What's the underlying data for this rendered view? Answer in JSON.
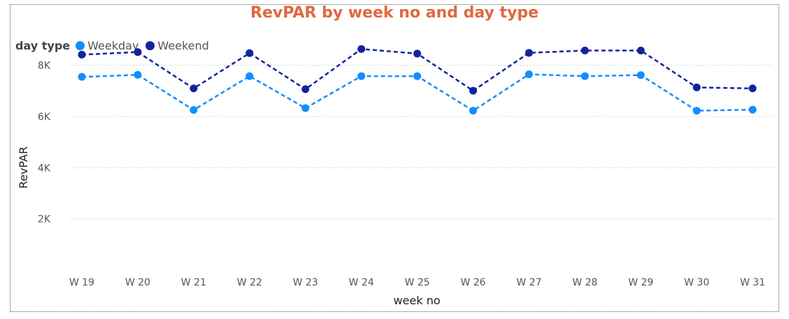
{
  "chart_data": {
    "type": "line",
    "title": "RevPAR by week no and day type",
    "xlabel": "week no",
    "ylabel": "RevPAR",
    "legend_title": "day type",
    "legend_position": "top-left",
    "grid": "horizontal dotted",
    "categories": [
      "W 19",
      "W 20",
      "W 21",
      "W 22",
      "W 23",
      "W 24",
      "W 25",
      "W 26",
      "W 27",
      "W 28",
      "W 29",
      "W 30",
      "W 31"
    ],
    "ylim": [
      0,
      9000
    ],
    "yticks": [
      2000,
      4000,
      6000,
      8000
    ],
    "ytick_labels": [
      "2K",
      "4K",
      "6K",
      "8K"
    ],
    "series": [
      {
        "name": "Weekday",
        "color": "#118DFF",
        "values": [
          7550,
          7630,
          6260,
          7580,
          6330,
          7580,
          7580,
          6230,
          7650,
          7580,
          7620,
          6230,
          6270
        ]
      },
      {
        "name": "Weekend",
        "color": "#12239E",
        "values": [
          8420,
          8520,
          7100,
          8480,
          7070,
          8640,
          8460,
          7010,
          8490,
          8580,
          8580,
          7140,
          7100
        ]
      }
    ]
  }
}
